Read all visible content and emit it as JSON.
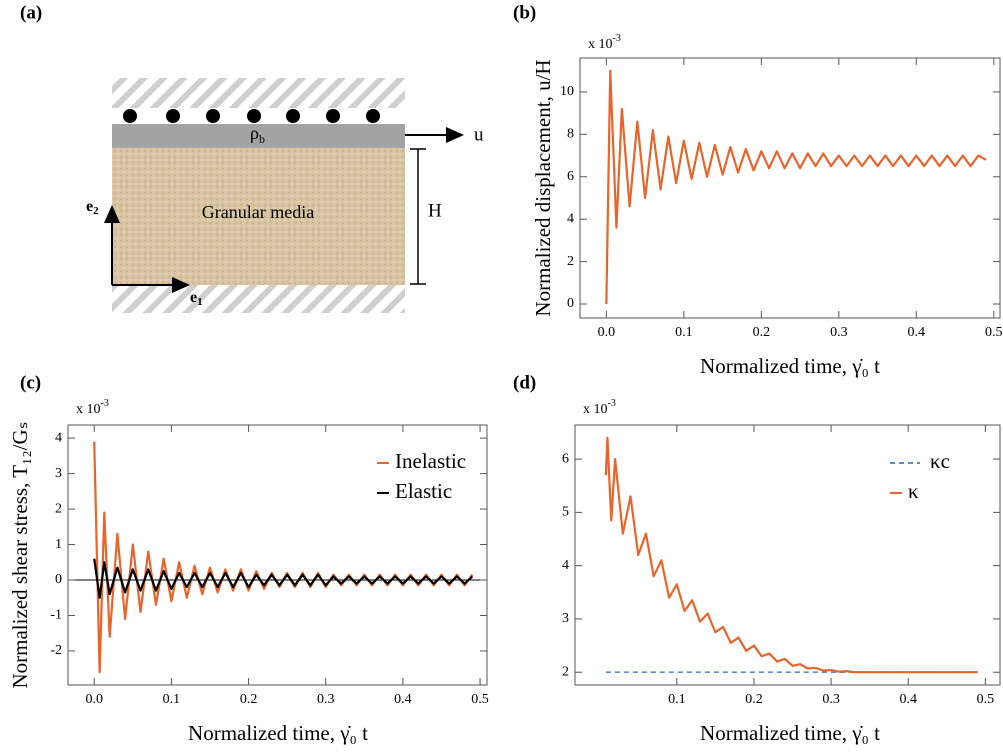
{
  "diagram": {
    "panel_label": "(a)",
    "density_symbol": "ρ",
    "density_subscript": "b",
    "velocity_label": "u",
    "height_label": "H",
    "media_label": "Granular media",
    "e_symbol": "e",
    "e2_subscript": "2",
    "e1_subscript": "1"
  },
  "chart_data": [
    {
      "type": "line",
      "panel_label": "(b)",
      "xlabel": "Normalized time,  γ̇₀ t",
      "ylabel": "Normalized displacement,  u/H",
      "y_multiplier": "x 10",
      "y_multiplier_exponent": "-3",
      "xlim": [
        -0.034,
        0.508
      ],
      "ylim": [
        -0.66,
        11.6
      ],
      "xticks": [
        {
          "value": 0,
          "label": "0.0"
        },
        0.1,
        0.2,
        0.3,
        0.4,
        0.5
      ],
      "yticks": [
        0,
        2,
        4,
        6,
        8,
        10
      ],
      "x": [
        0,
        0.005,
        0.013,
        0.02,
        0.03,
        0.04,
        0.05,
        0.06,
        0.07,
        0.08,
        0.09,
        0.1,
        0.11,
        0.12,
        0.13,
        0.14,
        0.15,
        0.16,
        0.17,
        0.18,
        0.19,
        0.2,
        0.21,
        0.22,
        0.23,
        0.24,
        0.25,
        0.26,
        0.27,
        0.28,
        0.29,
        0.3,
        0.31,
        0.32,
        0.33,
        0.34,
        0.35,
        0.36,
        0.37,
        0.38,
        0.39,
        0.4,
        0.41,
        0.42,
        0.43,
        0.44,
        0.45,
        0.46,
        0.47,
        0.48,
        0.49
      ],
      "series": [
        {
          "color": "#e8642a",
          "style": "solid",
          "values": [
            0,
            11.0,
            3.6,
            9.2,
            4.6,
            8.6,
            5.0,
            8.2,
            5.4,
            7.9,
            5.7,
            7.7,
            5.9,
            7.6,
            6.0,
            7.5,
            6.1,
            7.4,
            6.2,
            7.3,
            6.3,
            7.2,
            6.4,
            7.2,
            6.4,
            7.1,
            6.4,
            7.1,
            6.5,
            7.1,
            6.5,
            7.0,
            6.5,
            7.0,
            6.5,
            7.0,
            6.5,
            7.0,
            6.5,
            7.0,
            6.5,
            7.0,
            6.5,
            7.0,
            6.5,
            7.0,
            6.5,
            7.0,
            6.5,
            7.0,
            6.8
          ]
        }
      ]
    },
    {
      "type": "line",
      "panel_label": "(c)",
      "xlabel": "Normalized time,  γ̇₀ t",
      "ylabel": "Normalized shear stress,  T₁₂/Gₛ",
      "y_multiplier": "x 10",
      "y_multiplier_exponent": "-3",
      "xlim": [
        -0.034,
        0.509
      ],
      "ylim": [
        -2.96,
        4.37
      ],
      "zero_line": true,
      "legend": "upper right",
      "xticks": [
        {
          "value": 0,
          "label": "0.0"
        },
        0.1,
        0.2,
        0.3,
        0.4,
        0.5
      ],
      "yticks": [
        -2,
        -1,
        0,
        1,
        2,
        3,
        4
      ],
      "x": [
        0,
        0.007,
        0.013,
        0.02,
        0.03,
        0.04,
        0.05,
        0.06,
        0.07,
        0.08,
        0.09,
        0.1,
        0.11,
        0.12,
        0.13,
        0.14,
        0.15,
        0.16,
        0.17,
        0.18,
        0.19,
        0.2,
        0.21,
        0.22,
        0.23,
        0.24,
        0.25,
        0.26,
        0.27,
        0.28,
        0.29,
        0.3,
        0.31,
        0.32,
        0.33,
        0.34,
        0.35,
        0.36,
        0.37,
        0.38,
        0.39,
        0.4,
        0.41,
        0.42,
        0.43,
        0.44,
        0.45,
        0.46,
        0.47,
        0.48,
        0.49
      ],
      "series": [
        {
          "name": "Inelastic",
          "color": "#e8642a",
          "style": "solid",
          "values": [
            3.9,
            -2.6,
            1.9,
            -1.6,
            1.3,
            -1.1,
            1.0,
            -0.9,
            0.8,
            -0.7,
            0.6,
            -0.6,
            0.5,
            -0.5,
            0.4,
            -0.4,
            0.35,
            -0.35,
            0.3,
            -0.3,
            0.3,
            -0.3,
            0.25,
            -0.25,
            0.2,
            -0.2,
            0.2,
            -0.2,
            0.2,
            -0.2,
            0.2,
            -0.2,
            0.15,
            -0.15,
            0.15,
            -0.15,
            0.15,
            -0.15,
            0.15,
            -0.15,
            0.15,
            -0.15,
            0.15,
            -0.15,
            0.15,
            -0.15,
            0.15,
            -0.15,
            0.15,
            -0.15,
            0.15
          ]
        },
        {
          "name": "Elastic",
          "color": "#000000",
          "style": "solid",
          "values": [
            0.6,
            -0.5,
            0.5,
            -0.4,
            0.35,
            -0.35,
            0.3,
            -0.3,
            0.3,
            -0.3,
            0.25,
            -0.25,
            0.2,
            -0.2,
            0.2,
            -0.2,
            0.2,
            -0.2,
            0.2,
            -0.2,
            0.2,
            -0.2,
            0.15,
            -0.15,
            0.15,
            -0.15,
            0.15,
            -0.15,
            0.15,
            -0.15,
            0.15,
            -0.15,
            0.1,
            -0.1,
            0.1,
            -0.1,
            0.1,
            -0.1,
            0.1,
            -0.1,
            0.1,
            -0.1,
            0.1,
            -0.1,
            0.1,
            -0.1,
            0.1,
            -0.1,
            0.1,
            -0.1,
            0.1
          ]
        }
      ]
    },
    {
      "type": "line",
      "panel_label": "(d)",
      "xlabel": "Normalized time,  γ̇₀ t",
      "y_multiplier": "x 10",
      "y_multiplier_exponent": "-3",
      "xlim": [
        -0.032,
        0.519
      ],
      "ylim": [
        1.76,
        6.64
      ],
      "legend": "upper right",
      "xticks": [
        0.1,
        0.2,
        0.3,
        0.4,
        0.5
      ],
      "yticks": [
        2,
        3,
        4,
        5,
        6
      ],
      "series": [
        {
          "name": "κc",
          "color": "#5b8ccb",
          "style": "dashed",
          "x": [
            0.008,
            0.49
          ],
          "values": [
            2,
            2
          ]
        },
        {
          "name": "κ",
          "color": "#e8642a",
          "style": "solid",
          "x": [
            0.008,
            0.01,
            0.015,
            0.02,
            0.03,
            0.04,
            0.05,
            0.06,
            0.07,
            0.08,
            0.09,
            0.1,
            0.11,
            0.12,
            0.13,
            0.14,
            0.15,
            0.16,
            0.17,
            0.18,
            0.19,
            0.2,
            0.21,
            0.22,
            0.23,
            0.24,
            0.25,
            0.26,
            0.27,
            0.28,
            0.29,
            0.3,
            0.31,
            0.32,
            0.33,
            0.34,
            0.4,
            0.45,
            0.49
          ],
          "values": [
            5.7,
            6.4,
            4.85,
            6.0,
            4.6,
            5.3,
            4.2,
            4.6,
            3.8,
            4.1,
            3.4,
            3.65,
            3.15,
            3.35,
            2.95,
            3.1,
            2.75,
            2.85,
            2.55,
            2.65,
            2.4,
            2.5,
            2.3,
            2.35,
            2.2,
            2.25,
            2.12,
            2.15,
            2.07,
            2.08,
            2.03,
            2.04,
            2.01,
            2.02,
            2.0,
            2.0,
            2.0,
            2.0,
            2.0
          ]
        }
      ]
    }
  ]
}
